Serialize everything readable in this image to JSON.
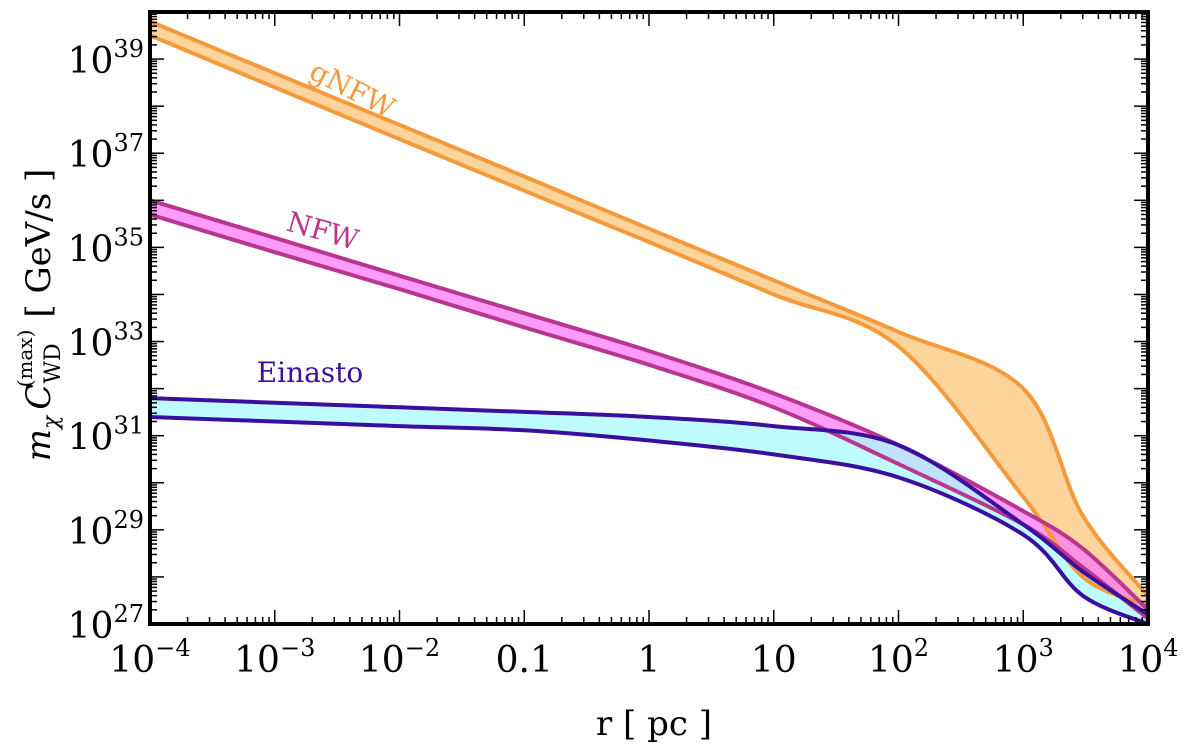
{
  "chart_data": {
    "type": "line",
    "xlabel": "r [ pc ]",
    "ylabel": {
      "prefix": "m",
      "prefix_sub": "χ",
      "main": "C",
      "main_sub": "WD",
      "main_sup": "(max)",
      "unit": "[ GeV/s ]"
    },
    "x_scale": "log",
    "y_scale": "log",
    "xlim": [
      0.0001,
      10000
    ],
    "ylim": [
      1e+27,
      1e+40
    ],
    "grid": false,
    "x_ticks": [
      {
        "value": 0.0001,
        "base": "10",
        "exp": "−4"
      },
      {
        "value": 0.001,
        "base": "10",
        "exp": "−3"
      },
      {
        "value": 0.01,
        "base": "10",
        "exp": "−2"
      },
      {
        "value": 0.1,
        "base": "0.1",
        "exp": ""
      },
      {
        "value": 1,
        "base": "1",
        "exp": ""
      },
      {
        "value": 10,
        "base": "10",
        "exp": ""
      },
      {
        "value": 100,
        "base": "10",
        "exp": "2"
      },
      {
        "value": 1000,
        "base": "10",
        "exp": "3"
      },
      {
        "value": 10000,
        "base": "10",
        "exp": "4"
      }
    ],
    "y_ticks": [
      {
        "value": 1e+27,
        "base": "10",
        "exp": "27"
      },
      {
        "value": 1e+29,
        "base": "10",
        "exp": "29"
      },
      {
        "value": 1e+31,
        "base": "10",
        "exp": "31"
      },
      {
        "value": 1e+33,
        "base": "10",
        "exp": "33"
      },
      {
        "value": 1e+35,
        "base": "10",
        "exp": "35"
      },
      {
        "value": 1e+37,
        "base": "10",
        "exp": "37"
      },
      {
        "value": 1e+39,
        "base": "10",
        "exp": "39"
      }
    ],
    "x": [
      0.0001,
      0.001,
      0.01,
      0.1,
      1,
      10,
      100,
      1000,
      3000,
      10000
    ],
    "series": [
      {
        "name": "gNFW",
        "line_color": "#F59A3C",
        "fill_color": "#FCD49C",
        "upper": [
          6.3e+39,
          5e+38,
          4e+37,
          3.2e+36,
          2.5e+35,
          2e+34,
          1.6e+33,
          1e+32,
          2e+29,
          4e+27
        ],
        "lower": [
          3.2e+39,
          2.5e+38,
          2e+37,
          1.6e+36,
          1.3e+35,
          1e+34,
          7.9e+32,
          5e+29,
          1e+28,
          2.5e+27
        ]
      },
      {
        "name": "NFW",
        "line_color": "#B8368F",
        "fill_color": "#FF7AF5",
        "upper": [
          1e+36,
          1.6e+35,
          2.5e+34,
          4e+33,
          6.3e+32,
          7.9e+31,
          6.3e+30,
          2.5e+29,
          4e+28,
          2e+27
        ],
        "lower": [
          5e+35,
          7.9e+34,
          1.3e+34,
          2e+33,
          3.2e+32,
          4e+31,
          2.5e+30,
          1.3e+29,
          1.6e+28,
          1.3e+27
        ]
      },
      {
        "name": "Einasto",
        "line_color": "#3A0FA0",
        "fill_color": "#A9FBFF",
        "upper": [
          6.3e+31,
          5e+31,
          4e+31,
          3.2e+31,
          2.5e+31,
          1.6e+31,
          6.3e+30,
          1.3e+29,
          1.3e+28,
          1.6e+27
        ],
        "lower": [
          2.5e+31,
          2e+31,
          1.6e+31,
          1.3e+31,
          7.9e+30,
          4e+30,
          1.3e+30,
          7.9e+28,
          4e+27,
          1e+27
        ]
      }
    ]
  }
}
